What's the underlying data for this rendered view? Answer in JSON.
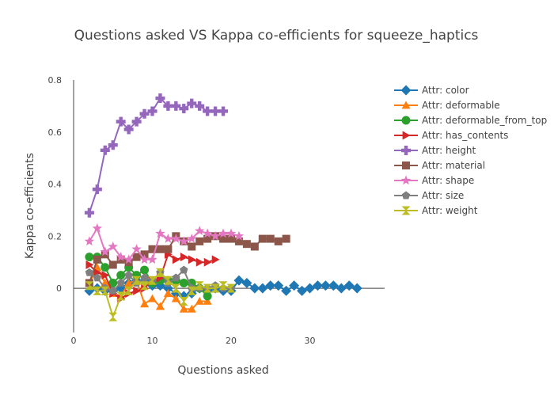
{
  "chart_data": {
    "type": "line",
    "title": "Questions asked VS Kappa co-efficients for squeeze_haptics",
    "xlabel": "Questions asked",
    "ylabel": "Kappa co-efficients",
    "xlim": [
      0,
      39.5
    ],
    "ylim": [
      -0.17,
      0.8
    ],
    "xticks": [
      0,
      10,
      20,
      30
    ],
    "yticks": [
      0,
      0.2,
      0.4,
      0.6,
      0.8
    ],
    "xtick_labels": [
      "0",
      "10",
      "20",
      "30"
    ],
    "ytick_labels": [
      "0",
      "0.2",
      "0.4",
      "0.6",
      "0.8"
    ],
    "grid": false,
    "legend_position": "right",
    "series": [
      {
        "name": "Attr: color",
        "color": "#1f77b4",
        "marker": "diamond",
        "x": [
          2,
          3,
          4,
          5,
          6,
          7,
          8,
          9,
          10,
          11,
          12,
          13,
          14,
          15,
          16,
          17,
          18,
          19,
          20,
          21,
          22,
          23,
          24,
          25,
          26,
          27,
          28,
          29,
          30,
          31,
          32,
          33,
          34,
          35,
          36
        ],
        "y": [
          -0.01,
          0.0,
          -0.01,
          -0.01,
          0.0,
          0.02,
          0.03,
          0.03,
          0.01,
          0.01,
          0.0,
          -0.02,
          -0.03,
          -0.02,
          0.0,
          -0.01,
          0.0,
          -0.01,
          -0.01,
          0.03,
          0.02,
          0.0,
          0.0,
          0.01,
          0.01,
          -0.01,
          0.01,
          -0.01,
          0.0,
          0.01,
          0.01,
          0.01,
          0.0,
          0.01,
          0.0
        ]
      },
      {
        "name": "Attr: deformable",
        "color": "#ff7f0e",
        "marker": "triangle-up",
        "x": [
          2,
          3,
          4,
          5,
          6,
          7,
          8,
          9,
          10,
          11,
          12,
          13,
          14,
          15,
          16,
          17
        ],
        "y": [
          0.02,
          0.08,
          0.02,
          -0.02,
          -0.03,
          0.02,
          0.03,
          -0.06,
          -0.04,
          -0.07,
          -0.02,
          -0.04,
          -0.08,
          -0.08,
          -0.05,
          -0.05
        ]
      },
      {
        "name": "Attr: deformable_from_top",
        "color": "#2ca02c",
        "marker": "circle",
        "x": [
          2,
          3,
          4,
          5,
          6,
          7,
          8,
          9,
          10,
          11,
          12,
          13,
          14,
          15,
          16,
          17
        ],
        "y": [
          0.12,
          0.12,
          0.08,
          0.02,
          0.05,
          0.08,
          0.05,
          0.07,
          0.02,
          0.03,
          0.03,
          0.03,
          0.02,
          0.02,
          0.0,
          -0.03
        ]
      },
      {
        "name": "Attr: has_contents",
        "color": "#d62728",
        "marker": "triangle-right",
        "x": [
          2,
          3,
          4,
          5,
          6,
          7,
          8,
          9,
          10,
          11,
          12,
          13,
          14,
          15,
          16,
          17,
          18
        ],
        "y": [
          0.09,
          0.06,
          0.05,
          -0.02,
          -0.04,
          -0.02,
          -0.01,
          0.0,
          0.03,
          0.04,
          0.13,
          0.11,
          0.12,
          0.11,
          0.1,
          0.1,
          0.11
        ]
      },
      {
        "name": "Attr: height",
        "color": "#9467bd",
        "marker": "cross",
        "x": [
          2,
          3,
          4,
          5,
          6,
          7,
          8,
          9,
          10,
          11,
          12,
          13,
          14,
          15,
          16,
          17,
          18,
          19
        ],
        "y": [
          0.29,
          0.38,
          0.53,
          0.55,
          0.64,
          0.61,
          0.64,
          0.67,
          0.68,
          0.73,
          0.7,
          0.7,
          0.69,
          0.71,
          0.7,
          0.68,
          0.68,
          0.68
        ]
      },
      {
        "name": "Attr: material",
        "color": "#8c564b",
        "marker": "square",
        "x": [
          2,
          3,
          4,
          5,
          6,
          7,
          8,
          9,
          10,
          11,
          12,
          13,
          14,
          15,
          16,
          17,
          18,
          19,
          20,
          21,
          22,
          23,
          24,
          25,
          26,
          27
        ],
        "y": [
          0.02,
          0.11,
          0.13,
          0.09,
          0.11,
          0.1,
          0.12,
          0.13,
          0.15,
          0.15,
          0.15,
          0.2,
          0.18,
          0.16,
          0.18,
          0.19,
          0.2,
          0.19,
          0.19,
          0.18,
          0.17,
          0.16,
          0.19,
          0.19,
          0.18,
          0.19
        ]
      },
      {
        "name": "Attr: shape",
        "color": "#e377c2",
        "marker": "star",
        "x": [
          2,
          3,
          4,
          5,
          6,
          7,
          8,
          9,
          10,
          11,
          12,
          13,
          14,
          15,
          16,
          17,
          18,
          19,
          20,
          21
        ],
        "y": [
          0.18,
          0.23,
          0.14,
          0.16,
          0.12,
          0.11,
          0.15,
          0.11,
          0.11,
          0.21,
          0.19,
          0.19,
          0.18,
          0.19,
          0.22,
          0.21,
          0.2,
          0.21,
          0.21,
          0.2
        ]
      },
      {
        "name": "Attr: size",
        "color": "#7f7f7f",
        "marker": "pentagon",
        "x": [
          2,
          3,
          4,
          5,
          6,
          7,
          8,
          9,
          10,
          11,
          12,
          13,
          14,
          15,
          16,
          17,
          18,
          19,
          20
        ],
        "y": [
          0.06,
          0.04,
          0.0,
          -0.01,
          0.02,
          0.05,
          0.02,
          0.04,
          0.03,
          0.06,
          0.02,
          0.04,
          0.07,
          0.0,
          0.0,
          0.0,
          0.01,
          0.0,
          0.0
        ]
      },
      {
        "name": "Attr: weight",
        "color": "#bcbd22",
        "marker": "hourglass",
        "x": [
          2,
          3,
          4,
          5,
          6,
          7,
          8,
          9,
          10,
          11,
          12,
          13,
          14,
          15,
          16,
          17,
          18,
          19,
          20
        ],
        "y": [
          0.01,
          -0.01,
          -0.01,
          -0.11,
          -0.03,
          -0.01,
          0.03,
          0.01,
          0.03,
          0.06,
          0.03,
          0.0,
          -0.05,
          -0.01,
          0.01,
          0.0,
          0.0,
          0.01,
          0.0
        ]
      }
    ]
  }
}
